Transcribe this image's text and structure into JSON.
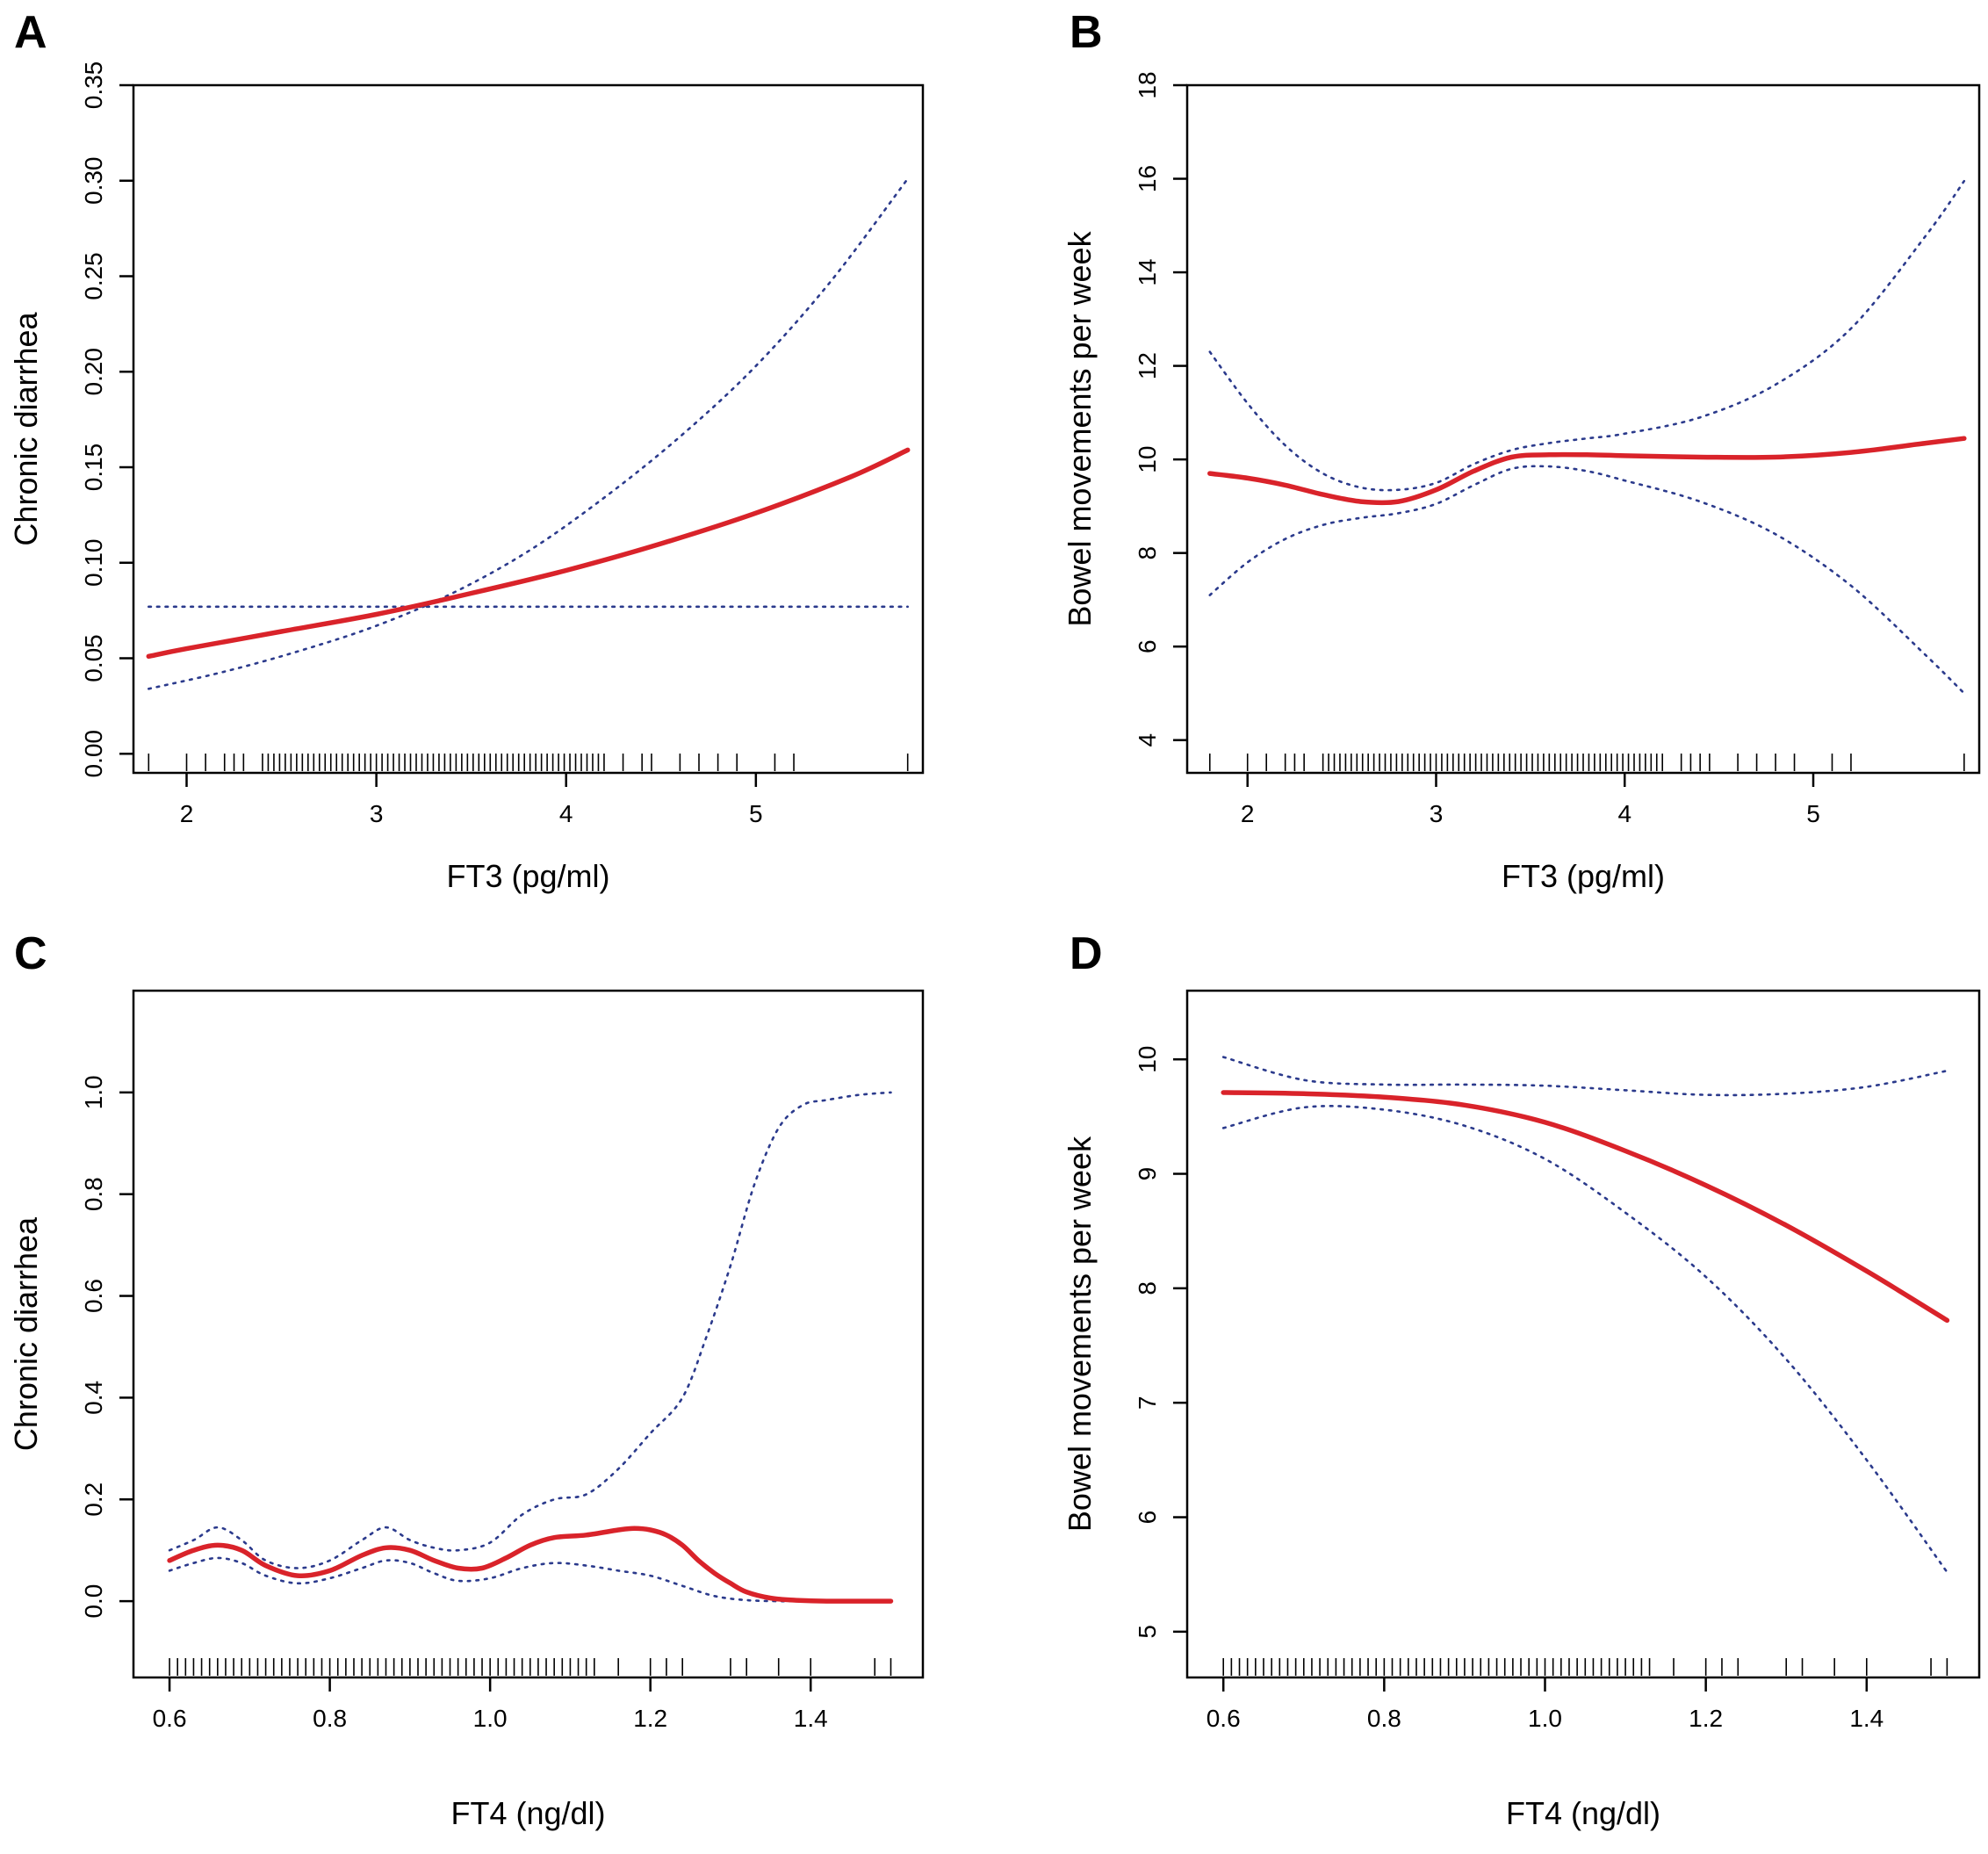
{
  "figure": {
    "colors": {
      "fit": "#d9232a",
      "ci": "#2b3a8c",
      "axis": "#000000",
      "rug": "#000000"
    },
    "chart_data": [
      {
        "id": "A",
        "panel_label": "A",
        "type": "line",
        "xlabel": "FT3 (pg/ml)",
        "ylabel": "Chronic diarrhea",
        "xlim": [
          1.72,
          5.88
        ],
        "ylim": [
          -0.01,
          0.35
        ],
        "xticks": [
          2,
          3,
          4,
          5
        ],
        "yticks": [
          0.0,
          0.05,
          0.1,
          0.15,
          0.2,
          0.25,
          0.3,
          0.35
        ],
        "ytick_labels": [
          "0.00",
          "0.05",
          "0.10",
          "0.15",
          "0.20",
          "0.25",
          "0.30",
          "0.35"
        ],
        "series": [
          {
            "name": "fit",
            "style": "solid",
            "x": [
              1.8,
              2.0,
              2.5,
              3.0,
              3.5,
              4.0,
              4.5,
              5.0,
              5.5,
              5.8
            ],
            "y": [
              0.051,
              0.055,
              0.064,
              0.073,
              0.084,
              0.096,
              0.11,
              0.126,
              0.145,
              0.159
            ]
          },
          {
            "name": "ci-upper",
            "style": "dotted",
            "x": [
              1.8,
              2.2,
              2.6,
              3.0,
              3.4,
              3.8,
              4.2,
              4.6,
              5.0,
              5.4,
              5.8
            ],
            "y": [
              0.034,
              0.043,
              0.054,
              0.067,
              0.084,
              0.106,
              0.134,
              0.166,
              0.203,
              0.248,
              0.301
            ]
          },
          {
            "name": "ci-lower",
            "style": "dotted",
            "x": [
              1.8,
              5.8
            ],
            "y": [
              0.077,
              0.077
            ]
          }
        ],
        "rug": [
          1.8,
          2.0,
          2.1,
          2.2,
          2.25,
          2.3,
          2.4,
          2.43,
          2.46,
          2.49,
          2.52,
          2.55,
          2.58,
          2.61,
          2.64,
          2.67,
          2.7,
          2.73,
          2.76,
          2.79,
          2.82,
          2.85,
          2.88,
          2.91,
          2.94,
          2.97,
          3.0,
          3.03,
          3.06,
          3.09,
          3.12,
          3.15,
          3.18,
          3.21,
          3.24,
          3.27,
          3.3,
          3.33,
          3.36,
          3.39,
          3.42,
          3.45,
          3.48,
          3.51,
          3.54,
          3.57,
          3.6,
          3.63,
          3.66,
          3.69,
          3.72,
          3.75,
          3.78,
          3.81,
          3.84,
          3.87,
          3.9,
          3.93,
          3.96,
          3.99,
          4.02,
          4.05,
          4.08,
          4.11,
          4.14,
          4.17,
          4.2,
          4.3,
          4.4,
          4.45,
          4.6,
          4.7,
          4.8,
          4.9,
          5.1,
          5.2,
          5.8
        ]
      },
      {
        "id": "B",
        "panel_label": "B",
        "type": "line",
        "xlabel": "FT3 (pg/ml)",
        "ylabel": "Bowel movements per week",
        "xlim": [
          1.68,
          5.88
        ],
        "ylim": [
          3.3,
          18.0
        ],
        "xticks": [
          2,
          3,
          4,
          5
        ],
        "yticks": [
          4,
          6,
          8,
          10,
          12,
          14,
          16,
          18
        ],
        "ytick_labels": [
          "4",
          "6",
          "8",
          "10",
          "12",
          "14",
          "16",
          "18"
        ],
        "series": [
          {
            "name": "fit",
            "style": "solid",
            "x": [
              1.8,
              2.0,
              2.2,
              2.4,
              2.6,
              2.8,
              3.0,
              3.2,
              3.4,
              3.6,
              3.8,
              4.0,
              4.4,
              4.8,
              5.2,
              5.6,
              5.8
            ],
            "y": [
              9.7,
              9.6,
              9.45,
              9.25,
              9.1,
              9.1,
              9.35,
              9.75,
              10.05,
              10.1,
              10.1,
              10.08,
              10.05,
              10.05,
              10.15,
              10.35,
              10.45
            ]
          },
          {
            "name": "ci-upper",
            "style": "dotted",
            "x": [
              1.8,
              2.0,
              2.2,
              2.4,
              2.6,
              2.8,
              3.0,
              3.2,
              3.4,
              3.6,
              3.8,
              4.0,
              4.4,
              4.8,
              5.2,
              5.6,
              5.8
            ],
            "y": [
              12.3,
              11.2,
              10.3,
              9.7,
              9.4,
              9.35,
              9.5,
              9.9,
              10.2,
              10.35,
              10.45,
              10.55,
              10.9,
              11.6,
              12.8,
              14.8,
              15.95
            ]
          },
          {
            "name": "ci-lower",
            "style": "dotted",
            "x": [
              1.8,
              2.0,
              2.2,
              2.4,
              2.6,
              2.8,
              3.0,
              3.2,
              3.4,
              3.6,
              3.8,
              4.0,
              4.4,
              4.8,
              5.2,
              5.6,
              5.8
            ],
            "y": [
              7.1,
              7.8,
              8.3,
              8.6,
              8.75,
              8.85,
              9.05,
              9.45,
              9.8,
              9.85,
              9.75,
              9.55,
              9.1,
              8.4,
              7.3,
              5.8,
              5.0
            ]
          }
        ],
        "rug": [
          1.8,
          2.0,
          2.1,
          2.2,
          2.25,
          2.3,
          2.4,
          2.43,
          2.46,
          2.49,
          2.52,
          2.55,
          2.58,
          2.61,
          2.64,
          2.67,
          2.7,
          2.73,
          2.76,
          2.79,
          2.82,
          2.85,
          2.88,
          2.91,
          2.94,
          2.97,
          3.0,
          3.03,
          3.06,
          3.09,
          3.12,
          3.15,
          3.18,
          3.21,
          3.24,
          3.27,
          3.3,
          3.33,
          3.36,
          3.39,
          3.42,
          3.45,
          3.48,
          3.51,
          3.54,
          3.57,
          3.6,
          3.63,
          3.66,
          3.69,
          3.72,
          3.75,
          3.78,
          3.81,
          3.84,
          3.87,
          3.9,
          3.93,
          3.96,
          3.99,
          4.02,
          4.05,
          4.08,
          4.11,
          4.14,
          4.17,
          4.2,
          4.3,
          4.35,
          4.4,
          4.45,
          4.6,
          4.7,
          4.8,
          4.9,
          5.1,
          5.2,
          5.8
        ]
      },
      {
        "id": "C",
        "panel_label": "C",
        "type": "line",
        "xlabel": "FT4 (ng/dl)",
        "ylabel": "Chronic diarrhea",
        "xlim": [
          0.555,
          1.54
        ],
        "ylim": [
          -0.15,
          1.2
        ],
        "xticks": [
          0.6,
          0.8,
          1.0,
          1.2,
          1.4
        ],
        "xtick_labels": [
          "0.6",
          "0.8",
          "1.0",
          "1.2",
          "1.4"
        ],
        "yticks": [
          0.0,
          0.2,
          0.4,
          0.6,
          0.8,
          1.0
        ],
        "ytick_labels": [
          "0.0",
          "0.2",
          "0.4",
          "0.6",
          "0.8",
          "1.0"
        ],
        "series": [
          {
            "name": "fit",
            "style": "solid",
            "x": [
              0.6,
              0.63,
              0.66,
              0.69,
              0.72,
              0.76,
              0.8,
              0.84,
              0.87,
              0.9,
              0.93,
              0.96,
              0.99,
              1.02,
              1.05,
              1.08,
              1.12,
              1.16,
              1.18,
              1.2,
              1.22,
              1.24,
              1.26,
              1.28,
              1.3,
              1.32,
              1.35,
              1.38,
              1.42,
              1.5
            ],
            "y": [
              0.08,
              0.1,
              0.11,
              0.1,
              0.07,
              0.05,
              0.06,
              0.09,
              0.105,
              0.1,
              0.08,
              0.065,
              0.065,
              0.085,
              0.11,
              0.125,
              0.13,
              0.14,
              0.143,
              0.14,
              0.13,
              0.11,
              0.08,
              0.055,
              0.035,
              0.018,
              0.006,
              0.002,
              0.0,
              0.0
            ]
          },
          {
            "name": "ci-upper",
            "style": "dotted",
            "x": [
              0.6,
              0.63,
              0.66,
              0.69,
              0.72,
              0.76,
              0.8,
              0.84,
              0.87,
              0.9,
              0.93,
              0.96,
              1.0,
              1.04,
              1.08,
              1.12,
              1.16,
              1.2,
              1.24,
              1.27,
              1.3,
              1.33,
              1.36,
              1.39,
              1.42,
              1.46,
              1.5
            ],
            "y": [
              0.1,
              0.12,
              0.145,
              0.12,
              0.08,
              0.065,
              0.08,
              0.12,
              0.145,
              0.12,
              0.105,
              0.1,
              0.115,
              0.17,
              0.2,
              0.21,
              0.26,
              0.33,
              0.4,
              0.52,
              0.66,
              0.82,
              0.93,
              0.975,
              0.985,
              0.995,
              1.0
            ]
          },
          {
            "name": "ci-lower",
            "style": "dotted",
            "x": [
              0.6,
              0.63,
              0.66,
              0.69,
              0.72,
              0.76,
              0.8,
              0.84,
              0.87,
              0.9,
              0.93,
              0.96,
              1.0,
              1.04,
              1.08,
              1.12,
              1.16,
              1.2,
              1.24,
              1.28,
              1.32,
              1.36,
              1.4,
              1.5
            ],
            "y": [
              0.06,
              0.075,
              0.085,
              0.075,
              0.05,
              0.035,
              0.045,
              0.065,
              0.08,
              0.075,
              0.055,
              0.04,
              0.045,
              0.065,
              0.075,
              0.07,
              0.06,
              0.05,
              0.03,
              0.01,
              0.002,
              0.0,
              0.0,
              0.0
            ]
          }
        ],
        "rug": [
          0.6,
          0.61,
          0.62,
          0.63,
          0.64,
          0.65,
          0.66,
          0.67,
          0.68,
          0.69,
          0.7,
          0.71,
          0.72,
          0.73,
          0.74,
          0.75,
          0.76,
          0.77,
          0.78,
          0.79,
          0.8,
          0.81,
          0.82,
          0.83,
          0.84,
          0.85,
          0.86,
          0.87,
          0.88,
          0.89,
          0.9,
          0.91,
          0.92,
          0.93,
          0.94,
          0.95,
          0.96,
          0.97,
          0.98,
          0.99,
          1.0,
          1.01,
          1.02,
          1.03,
          1.04,
          1.05,
          1.06,
          1.07,
          1.08,
          1.09,
          1.1,
          1.11,
          1.12,
          1.13,
          1.16,
          1.2,
          1.22,
          1.24,
          1.3,
          1.32,
          1.36,
          1.4,
          1.48,
          1.5
        ]
      },
      {
        "id": "D",
        "panel_label": "D",
        "type": "line",
        "xlabel": "FT4 (ng/dl)",
        "ylabel": "Bowel movements per week",
        "xlim": [
          0.555,
          1.54
        ],
        "ylim": [
          4.6,
          10.6
        ],
        "xticks": [
          0.6,
          0.8,
          1.0,
          1.2,
          1.4
        ],
        "xtick_labels": [
          "0.6",
          "0.8",
          "1.0",
          "1.2",
          "1.4"
        ],
        "yticks": [
          5,
          6,
          7,
          8,
          9,
          10
        ],
        "ytick_labels": [
          "5",
          "6",
          "7",
          "8",
          "9",
          "10"
        ],
        "series": [
          {
            "name": "fit",
            "style": "solid",
            "x": [
              0.6,
              0.7,
              0.8,
              0.9,
              1.0,
              1.1,
              1.2,
              1.3,
              1.4,
              1.5
            ],
            "y": [
              9.71,
              9.7,
              9.67,
              9.6,
              9.45,
              9.2,
              8.9,
              8.55,
              8.15,
              7.72
            ]
          },
          {
            "name": "ci-upper",
            "style": "dotted",
            "x": [
              0.6,
              0.7,
              0.8,
              0.9,
              1.0,
              1.1,
              1.2,
              1.3,
              1.4,
              1.5
            ],
            "y": [
              10.02,
              9.82,
              9.78,
              9.78,
              9.77,
              9.73,
              9.69,
              9.7,
              9.76,
              9.9
            ]
          },
          {
            "name": "ci-lower",
            "style": "dotted",
            "x": [
              0.6,
              0.7,
              0.8,
              0.9,
              1.0,
              1.1,
              1.2,
              1.3,
              1.4,
              1.5
            ],
            "y": [
              9.4,
              9.58,
              9.56,
              9.42,
              9.13,
              8.66,
              8.1,
              7.38,
              6.5,
              5.52
            ]
          }
        ],
        "rug": [
          0.6,
          0.61,
          0.62,
          0.63,
          0.64,
          0.65,
          0.66,
          0.67,
          0.68,
          0.69,
          0.7,
          0.71,
          0.72,
          0.73,
          0.74,
          0.75,
          0.76,
          0.77,
          0.78,
          0.79,
          0.8,
          0.81,
          0.82,
          0.83,
          0.84,
          0.85,
          0.86,
          0.87,
          0.88,
          0.89,
          0.9,
          0.91,
          0.92,
          0.93,
          0.94,
          0.95,
          0.96,
          0.97,
          0.98,
          0.99,
          1.0,
          1.01,
          1.02,
          1.03,
          1.04,
          1.05,
          1.06,
          1.07,
          1.08,
          1.09,
          1.1,
          1.11,
          1.12,
          1.13,
          1.16,
          1.2,
          1.22,
          1.24,
          1.3,
          1.32,
          1.36,
          1.4,
          1.48,
          1.5
        ]
      }
    ]
  }
}
